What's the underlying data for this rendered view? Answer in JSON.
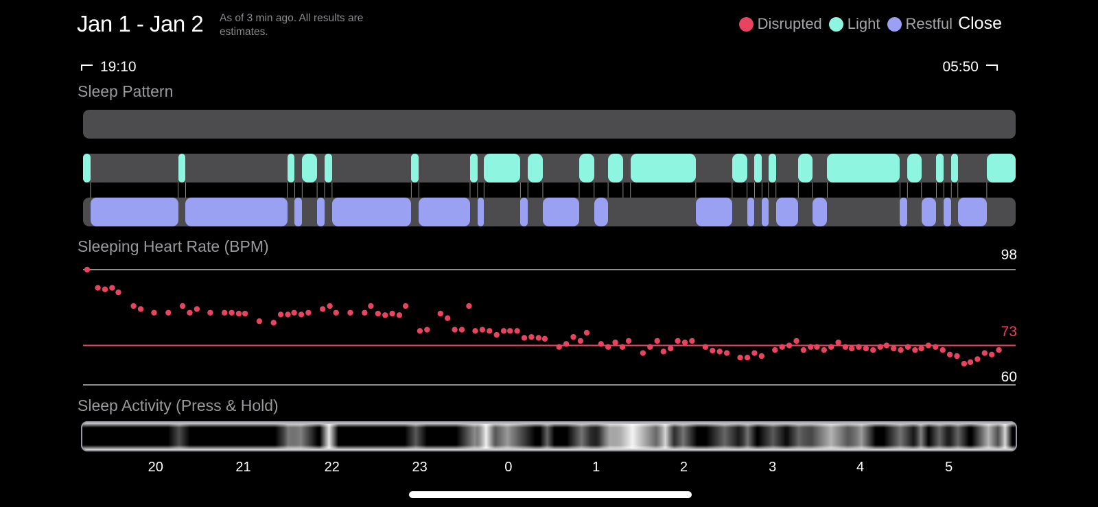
{
  "header": {
    "date_range": "Jan 1 - Jan 2",
    "note": "As of 3 min ago. All results are estimates.",
    "close_label": "Close"
  },
  "legend": [
    {
      "label": "Disrupted",
      "color": "#e8445f"
    },
    {
      "label": "Light",
      "color": "#8ef5e0"
    },
    {
      "label": "Restful",
      "color": "#9aa1f2"
    }
  ],
  "times": {
    "start": "19:10",
    "end": "05:50"
  },
  "sections": {
    "sleep_pattern": "Sleep Pattern",
    "heart_rate": "Sleeping Heart Rate (BPM)",
    "activity": "Sleep Activity (Press & Hold)"
  },
  "colors": {
    "disrupted": "#e8445f",
    "light": "#8ef5e0",
    "restful": "#9aa1f2",
    "track": "#4c4c4f"
  },
  "sleep_pattern": {
    "light_segments": [
      [
        0.0,
        0.008
      ],
      [
        0.102,
        0.11
      ],
      [
        0.219,
        0.227
      ],
      [
        0.235,
        0.251
      ],
      [
        0.259,
        0.267
      ],
      [
        0.352,
        0.36
      ],
      [
        0.415,
        0.423
      ],
      [
        0.43,
        0.469
      ],
      [
        0.477,
        0.493
      ],
      [
        0.532,
        0.548
      ],
      [
        0.563,
        0.579
      ],
      [
        0.587,
        0.657
      ],
      [
        0.696,
        0.712
      ],
      [
        0.72,
        0.728
      ],
      [
        0.735,
        0.743
      ],
      [
        0.767,
        0.782
      ],
      [
        0.798,
        0.876
      ],
      [
        0.884,
        0.899
      ],
      [
        0.915,
        0.923
      ],
      [
        0.931,
        0.938
      ],
      [
        0.969,
        1.0
      ]
    ],
    "restful_segments": [
      [
        0.008,
        0.102
      ],
      [
        0.11,
        0.219
      ],
      [
        0.227,
        0.235
      ],
      [
        0.251,
        0.259
      ],
      [
        0.267,
        0.352
      ],
      [
        0.36,
        0.415
      ],
      [
        0.423,
        0.43
      ],
      [
        0.469,
        0.477
      ],
      [
        0.493,
        0.532
      ],
      [
        0.548,
        0.563
      ],
      [
        0.657,
        0.696
      ],
      [
        0.712,
        0.72
      ],
      [
        0.728,
        0.735
      ],
      [
        0.743,
        0.767
      ],
      [
        0.782,
        0.798
      ],
      [
        0.876,
        0.884
      ],
      [
        0.899,
        0.915
      ],
      [
        0.923,
        0.931
      ],
      [
        0.938,
        0.969
      ]
    ],
    "disrupted_segments": []
  },
  "heart_rate": {
    "max_label": "98",
    "avg_label": "73",
    "min_label": "60",
    "max": 98,
    "avg": 73,
    "min": 60,
    "points": [
      [
        0.0,
        98.0
      ],
      [
        0.012,
        92.0
      ],
      [
        0.02,
        91.5
      ],
      [
        0.028,
        92.0
      ],
      [
        0.035,
        90.5
      ],
      [
        0.052,
        86.0
      ],
      [
        0.06,
        85.0
      ],
      [
        0.075,
        83.8
      ],
      [
        0.091,
        83.8
      ],
      [
        0.107,
        86.0
      ],
      [
        0.115,
        83.8
      ],
      [
        0.123,
        85.0
      ],
      [
        0.138,
        83.8
      ],
      [
        0.154,
        83.8
      ],
      [
        0.162,
        83.8
      ],
      [
        0.17,
        83.5
      ],
      [
        0.177,
        83.5
      ],
      [
        0.193,
        81.0
      ],
      [
        0.209,
        80.5
      ],
      [
        0.217,
        83.2
      ],
      [
        0.225,
        83.2
      ],
      [
        0.232,
        83.8
      ],
      [
        0.24,
        83.2
      ],
      [
        0.248,
        83.8
      ],
      [
        0.264,
        85.0
      ],
      [
        0.272,
        86.0
      ],
      [
        0.279,
        83.8
      ],
      [
        0.295,
        83.8
      ],
      [
        0.311,
        83.8
      ],
      [
        0.318,
        86.0
      ],
      [
        0.326,
        83.5
      ],
      [
        0.334,
        83.0
      ],
      [
        0.342,
        83.5
      ],
      [
        0.35,
        83.0
      ],
      [
        0.357,
        86.0
      ],
      [
        0.373,
        77.8
      ],
      [
        0.381,
        78.2
      ],
      [
        0.396,
        83.5
      ],
      [
        0.404,
        82.0
      ],
      [
        0.412,
        78.2
      ],
      [
        0.42,
        78.2
      ],
      [
        0.428,
        86.0
      ],
      [
        0.435,
        77.8
      ],
      [
        0.443,
        78.2
      ],
      [
        0.451,
        77.8
      ],
      [
        0.459,
        76.5
      ],
      [
        0.467,
        77.8
      ],
      [
        0.474,
        77.8
      ],
      [
        0.482,
        77.8
      ],
      [
        0.49,
        75.5
      ],
      [
        0.498,
        75.8
      ],
      [
        0.506,
        75.5
      ],
      [
        0.513,
        75.2
      ],
      [
        0.529,
        72.5
      ],
      [
        0.537,
        73.5
      ],
      [
        0.545,
        75.8
      ],
      [
        0.553,
        74.5
      ],
      [
        0.56,
        77.2
      ],
      [
        0.576,
        73.5
      ],
      [
        0.584,
        72.5
      ],
      [
        0.592,
        74.0
      ],
      [
        0.6,
        72.5
      ],
      [
        0.607,
        74.5
      ],
      [
        0.623,
        70.5
      ],
      [
        0.631,
        72.5
      ],
      [
        0.639,
        74.5
      ],
      [
        0.646,
        71.0
      ],
      [
        0.654,
        72.0
      ],
      [
        0.662,
        74.5
      ],
      [
        0.67,
        74.0
      ],
      [
        0.678,
        74.5
      ],
      [
        0.693,
        72.5
      ],
      [
        0.701,
        71.3
      ],
      [
        0.709,
        71.0
      ],
      [
        0.717,
        70.5
      ],
      [
        0.732,
        69.0
      ],
      [
        0.74,
        69.0
      ],
      [
        0.748,
        70.5
      ],
      [
        0.756,
        69.5
      ],
      [
        0.771,
        71.5
      ],
      [
        0.779,
        72.5
      ],
      [
        0.787,
        73.0
      ],
      [
        0.795,
        74.5
      ],
      [
        0.803,
        71.5
      ],
      [
        0.811,
        72.5
      ],
      [
        0.818,
        72.5
      ],
      [
        0.826,
        71.5
      ],
      [
        0.834,
        72.5
      ],
      [
        0.842,
        74.0
      ],
      [
        0.85,
        72.5
      ],
      [
        0.857,
        72.0
      ],
      [
        0.865,
        72.5
      ],
      [
        0.873,
        72.0
      ],
      [
        0.881,
        71.5
      ],
      [
        0.889,
        72.5
      ],
      [
        0.896,
        73.0
      ],
      [
        0.904,
        72.0
      ],
      [
        0.912,
        71.5
      ],
      [
        0.92,
        72.5
      ],
      [
        0.928,
        71.5
      ],
      [
        0.935,
        72.0
      ],
      [
        0.943,
        73.0
      ],
      [
        0.951,
        72.5
      ],
      [
        0.959,
        71.5
      ],
      [
        0.967,
        70.0
      ],
      [
        0.975,
        69.5
      ],
      [
        0.983,
        67.0
      ],
      [
        0.99,
        67.5
      ],
      [
        0.998,
        68.5
      ],
      [
        1.006,
        70.5
      ],
      [
        1.014,
        70.0
      ],
      [
        1.022,
        71.5
      ]
    ]
  },
  "activity": {
    "bands": [
      [
        0.1,
        0.012,
        0.3
      ],
      [
        0.218,
        0.014,
        0.4
      ],
      [
        0.232,
        0.018,
        0.5
      ],
      [
        0.262,
        0.01,
        0.9
      ],
      [
        0.356,
        0.012,
        0.35
      ],
      [
        0.42,
        0.02,
        0.55
      ],
      [
        0.432,
        0.01,
        0.9
      ],
      [
        0.455,
        0.03,
        0.6
      ],
      [
        0.498,
        0.008,
        0.4
      ],
      [
        0.535,
        0.016,
        0.45
      ],
      [
        0.566,
        0.012,
        0.4
      ],
      [
        0.59,
        0.045,
        0.95
      ],
      [
        0.626,
        0.01,
        0.8
      ],
      [
        0.645,
        0.015,
        0.45
      ],
      [
        0.69,
        0.02,
        0.4
      ],
      [
        0.715,
        0.01,
        0.45
      ],
      [
        0.742,
        0.016,
        0.35
      ],
      [
        0.77,
        0.014,
        0.4
      ],
      [
        0.805,
        0.035,
        0.7
      ],
      [
        0.838,
        0.015,
        0.6
      ],
      [
        0.88,
        0.018,
        0.45
      ],
      [
        0.902,
        0.008,
        0.5
      ],
      [
        0.922,
        0.012,
        0.4
      ],
      [
        0.942,
        0.012,
        0.4
      ],
      [
        0.975,
        0.018,
        0.7
      ],
      [
        0.993,
        0.008,
        0.85
      ]
    ]
  },
  "axis": {
    "ticks": [
      {
        "label": "20",
        "pos": 0.077
      },
      {
        "label": "21",
        "pos": 0.171
      },
      {
        "label": "22",
        "pos": 0.266
      },
      {
        "label": "23",
        "pos": 0.36
      },
      {
        "label": "0",
        "pos": 0.455
      },
      {
        "label": "1",
        "pos": 0.549
      },
      {
        "label": "2",
        "pos": 0.643
      },
      {
        "label": "3",
        "pos": 0.738
      },
      {
        "label": "4",
        "pos": 0.832
      },
      {
        "label": "5",
        "pos": 0.927
      }
    ]
  }
}
